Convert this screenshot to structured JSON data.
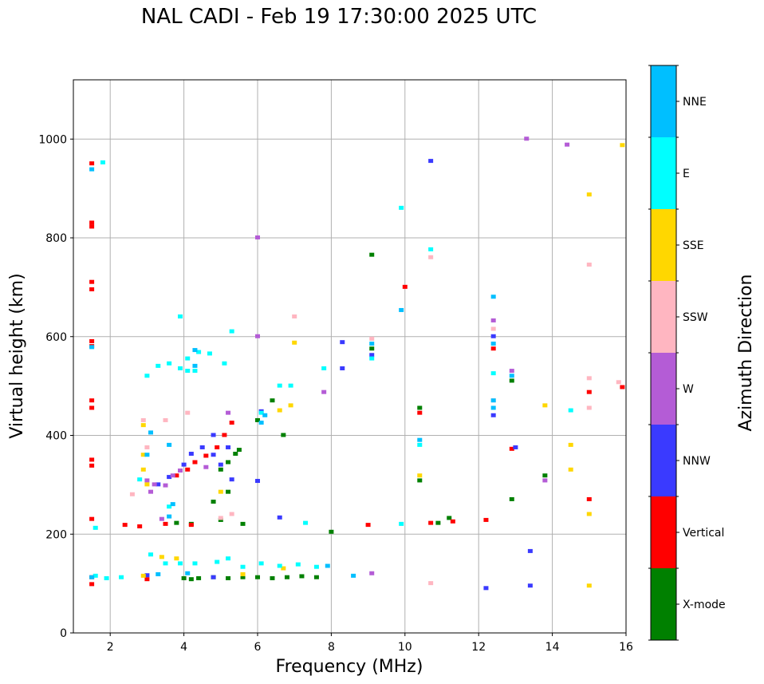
{
  "chart_data": {
    "type": "scatter",
    "title": "NAL CADI - Feb 19 17:30:00 2025 UTC",
    "xlabel": "Frequency (MHz)",
    "ylabel": "Virtual height (km)",
    "xlim": [
      1,
      16
    ],
    "ylim": [
      0,
      1120
    ],
    "xticks": [
      2,
      4,
      6,
      8,
      10,
      12,
      14,
      16
    ],
    "yticks": [
      0,
      200,
      400,
      600,
      800,
      1000
    ],
    "grid": true,
    "colorbar": {
      "label": "Azimuth Direction",
      "categories": [
        {
          "name": "X-mode",
          "color": "#008000"
        },
        {
          "name": "Vertical",
          "color": "#ff0000"
        },
        {
          "name": "NNW",
          "color": "#3a3aff"
        },
        {
          "name": "W",
          "color": "#b45cd6"
        },
        {
          "name": "SSW",
          "color": "#ffb6c1"
        },
        {
          "name": "SSE",
          "color": "#ffd700"
        },
        {
          "name": "E",
          "color": "#00ffff"
        },
        {
          "name": "NNE",
          "color": "#00bfff"
        }
      ]
    },
    "series": [
      {
        "name": "X-mode",
        "points": [
          [
            4.0,
            110
          ],
          [
            4.2,
            108
          ],
          [
            4.4,
            110
          ],
          [
            4.8,
            112
          ],
          [
            5.2,
            110
          ],
          [
            5.6,
            112
          ],
          [
            6.0,
            112
          ],
          [
            6.4,
            110
          ],
          [
            6.8,
            112
          ],
          [
            7.2,
            114
          ],
          [
            7.6,
            112
          ],
          [
            4.8,
            265
          ],
          [
            5.0,
            330
          ],
          [
            5.2,
            345
          ],
          [
            5.4,
            362
          ],
          [
            5.5,
            370
          ],
          [
            5.0,
            228
          ],
          [
            5.6,
            220
          ],
          [
            4.2,
            220
          ],
          [
            6.0,
            430
          ],
          [
            6.4,
            470
          ],
          [
            6.7,
            400
          ],
          [
            8.0,
            204
          ],
          [
            9.1,
            765
          ],
          [
            9.1,
            575
          ],
          [
            10.4,
            455
          ],
          [
            10.4,
            308
          ],
          [
            10.9,
            222
          ],
          [
            11.2,
            232
          ],
          [
            12.9,
            270
          ],
          [
            12.9,
            510
          ],
          [
            13.8,
            318
          ],
          [
            5.2,
            285
          ],
          [
            3.8,
            222
          ]
        ]
      },
      {
        "name": "Vertical",
        "points": [
          [
            1.5,
            950
          ],
          [
            1.5,
            830
          ],
          [
            1.5,
            822
          ],
          [
            1.5,
            710
          ],
          [
            1.5,
            695
          ],
          [
            1.5,
            590
          ],
          [
            1.5,
            580
          ],
          [
            1.5,
            470
          ],
          [
            1.5,
            455
          ],
          [
            1.5,
            350
          ],
          [
            1.5,
            338
          ],
          [
            1.5,
            230
          ],
          [
            1.5,
            112
          ],
          [
            1.5,
            98
          ],
          [
            2.4,
            218
          ],
          [
            2.8,
            215
          ],
          [
            3.8,
            318
          ],
          [
            4.1,
            330
          ],
          [
            4.3,
            345
          ],
          [
            4.6,
            358
          ],
          [
            4.9,
            375
          ],
          [
            5.1,
            400
          ],
          [
            5.3,
            425
          ],
          [
            3.5,
            220
          ],
          [
            9.0,
            218
          ],
          [
            10.0,
            700
          ],
          [
            10.4,
            445
          ],
          [
            10.7,
            222
          ],
          [
            11.3,
            225
          ],
          [
            12.2,
            228
          ],
          [
            12.4,
            575
          ],
          [
            12.9,
            372
          ],
          [
            15.0,
            270
          ],
          [
            15.0,
            487
          ],
          [
            15.9,
            497
          ],
          [
            4.2,
            218
          ],
          [
            3.0,
            108
          ]
        ]
      },
      {
        "name": "NNW",
        "points": [
          [
            3.3,
            300
          ],
          [
            3.6,
            315
          ],
          [
            4.0,
            340
          ],
          [
            4.2,
            362
          ],
          [
            4.5,
            375
          ],
          [
            4.8,
            360
          ],
          [
            5.0,
            340
          ],
          [
            5.3,
            310
          ],
          [
            5.2,
            375
          ],
          [
            4.8,
            400
          ],
          [
            6.0,
            307
          ],
          [
            6.1,
            448
          ],
          [
            8.3,
            588
          ],
          [
            8.3,
            535
          ],
          [
            9.1,
            562
          ],
          [
            10.7,
            955
          ],
          [
            12.4,
            440
          ],
          [
            12.4,
            600
          ],
          [
            12.2,
            90
          ],
          [
            13.0,
            375
          ],
          [
            13.4,
            165
          ],
          [
            13.4,
            95
          ],
          [
            4.8,
            112
          ],
          [
            5.6,
            118
          ],
          [
            6.6,
            233
          ],
          [
            3.0,
            116
          ]
        ]
      },
      {
        "name": "W",
        "points": [
          [
            3.0,
            308
          ],
          [
            3.2,
            300
          ],
          [
            3.5,
            298
          ],
          [
            3.7,
            318
          ],
          [
            3.9,
            328
          ],
          [
            3.1,
            285
          ],
          [
            4.6,
            335
          ],
          [
            6.0,
            800
          ],
          [
            6.0,
            600
          ],
          [
            7.8,
            487
          ],
          [
            9.1,
            120
          ],
          [
            12.4,
            632
          ],
          [
            12.9,
            530
          ],
          [
            13.3,
            1000
          ],
          [
            13.8,
            308
          ],
          [
            14.4,
            988
          ],
          [
            5.2,
            445
          ],
          [
            3.4,
            230
          ]
        ]
      },
      {
        "name": "SSW",
        "points": [
          [
            2.6,
            280
          ],
          [
            2.9,
            430
          ],
          [
            3.0,
            375
          ],
          [
            3.5,
            430
          ],
          [
            4.1,
            445
          ],
          [
            5.0,
            232
          ],
          [
            5.3,
            240
          ],
          [
            7.0,
            640
          ],
          [
            9.1,
            595
          ],
          [
            10.7,
            760
          ],
          [
            10.7,
            100
          ],
          [
            12.4,
            615
          ],
          [
            15.0,
            745
          ],
          [
            15.0,
            515
          ],
          [
            15.0,
            455
          ],
          [
            15.8,
            507
          ],
          [
            12.4,
            470
          ]
        ]
      },
      {
        "name": "SSE",
        "points": [
          [
            2.9,
            420
          ],
          [
            2.9,
            360
          ],
          [
            2.9,
            330
          ],
          [
            3.0,
            300
          ],
          [
            3.4,
            153
          ],
          [
            3.8,
            150
          ],
          [
            7.0,
            587
          ],
          [
            6.6,
            450
          ],
          [
            6.9,
            460
          ],
          [
            10.4,
            318
          ],
          [
            13.8,
            460
          ],
          [
            14.5,
            380
          ],
          [
            14.5,
            330
          ],
          [
            15.0,
            887
          ],
          [
            15.0,
            240
          ],
          [
            15.0,
            95
          ],
          [
            15.9,
            987
          ],
          [
            5.6,
            118
          ],
          [
            6.7,
            130
          ],
          [
            2.9,
            115
          ],
          [
            5.0,
            285
          ]
        ]
      },
      {
        "name": "E",
        "points": [
          [
            1.8,
            952
          ],
          [
            2.8,
            310
          ],
          [
            3.1,
            158
          ],
          [
            3.5,
            140
          ],
          [
            3.9,
            140
          ],
          [
            4.3,
            140
          ],
          [
            4.9,
            143
          ],
          [
            5.2,
            150
          ],
          [
            5.6,
            133
          ],
          [
            6.1,
            140
          ],
          [
            6.6,
            135
          ],
          [
            7.1,
            138
          ],
          [
            7.6,
            133
          ],
          [
            3.0,
            520
          ],
          [
            3.3,
            540
          ],
          [
            3.6,
            545
          ],
          [
            3.9,
            535
          ],
          [
            4.1,
            530
          ],
          [
            4.3,
            530
          ],
          [
            4.1,
            555
          ],
          [
            4.4,
            568
          ],
          [
            4.7,
            565
          ],
          [
            5.1,
            545
          ],
          [
            5.3,
            610
          ],
          [
            6.1,
            445
          ],
          [
            6.6,
            500
          ],
          [
            6.9,
            500
          ],
          [
            7.3,
            222
          ],
          [
            7.8,
            535
          ],
          [
            9.1,
            555
          ],
          [
            9.9,
            860
          ],
          [
            9.9,
            220
          ],
          [
            10.4,
            380
          ],
          [
            10.7,
            776
          ],
          [
            12.4,
            525
          ],
          [
            14.5,
            450
          ],
          [
            1.6,
            115
          ],
          [
            1.9,
            110
          ],
          [
            2.3,
            112
          ],
          [
            1.6,
            212
          ],
          [
            3.9,
            640
          ],
          [
            3.6,
            255
          ]
        ]
      },
      {
        "name": "NNE",
        "points": [
          [
            1.5,
            112
          ],
          [
            1.5,
            938
          ],
          [
            1.5,
            578
          ],
          [
            3.0,
            360
          ],
          [
            3.1,
            405
          ],
          [
            3.6,
            380
          ],
          [
            3.7,
            260
          ],
          [
            3.6,
            235
          ],
          [
            4.3,
            572
          ],
          [
            4.3,
            540
          ],
          [
            6.2,
            440
          ],
          [
            6.1,
            425
          ],
          [
            9.1,
            585
          ],
          [
            9.9,
            653
          ],
          [
            10.4,
            390
          ],
          [
            12.4,
            680
          ],
          [
            12.4,
            470
          ],
          [
            12.4,
            455
          ],
          [
            12.4,
            585
          ],
          [
            12.9,
            520
          ],
          [
            3.3,
            118
          ],
          [
            7.9,
            135
          ],
          [
            8.6,
            115
          ],
          [
            4.1,
            120
          ]
        ]
      }
    ]
  }
}
